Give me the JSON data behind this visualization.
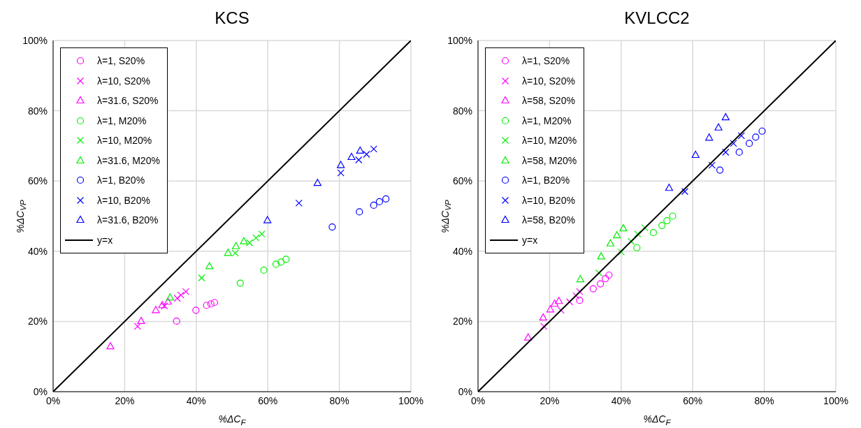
{
  "chart_data": [
    {
      "type": "scatter",
      "title": "KCS",
      "xlabel": "%ΔC$_{F}$",
      "ylabel": "%ΔC$_{VP}$",
      "xlim": [
        0,
        100
      ],
      "ylim": [
        0,
        100
      ],
      "xticks": [
        {
          "value": 0,
          "label": "0%"
        },
        {
          "value": 20,
          "label": "20%"
        },
        {
          "value": 40,
          "label": "40%"
        },
        {
          "value": 60,
          "label": "60%"
        },
        {
          "value": 80,
          "label": "80%"
        },
        {
          "value": 100,
          "label": "100%"
        }
      ],
      "yticks": [
        {
          "value": 0,
          "label": "0%"
        },
        {
          "value": 20,
          "label": "20%"
        },
        {
          "value": 40,
          "label": "40%"
        },
        {
          "value": 60,
          "label": "60%"
        },
        {
          "value": 80,
          "label": "80%"
        },
        {
          "value": 100,
          "label": "100%"
        }
      ],
      "grid": true,
      "legend": "top left",
      "series": [
        {
          "name": "λ=1, S20%",
          "color": "#ff00ff",
          "marker": "circle",
          "x": [
            34.5,
            39.9,
            42.9,
            44.1,
            45.1
          ],
          "values": [
            20.1,
            23.2,
            24.6,
            25.0,
            25.4
          ]
        },
        {
          "name": "λ=10, S20%",
          "color": "#ff00ff",
          "marker": "cross",
          "x": [
            23.6,
            31.1,
            34.7,
            35.7,
            37.1
          ],
          "values": [
            18.6,
            24.4,
            26.6,
            27.5,
            28.5
          ]
        },
        {
          "name": "λ=31.6, S20%",
          "color": "#ff00ff",
          "marker": "triangle",
          "x": [
            16.0,
            24.6,
            28.7,
            30.5,
            32.1
          ],
          "values": [
            12.9,
            20.1,
            23.2,
            24.6,
            25.6
          ]
        },
        {
          "name": "λ=1, M20%",
          "color": "#00ee00",
          "marker": "circle",
          "x": [
            52.3,
            58.9,
            62.3,
            63.7,
            65.1
          ],
          "values": [
            30.9,
            34.6,
            36.3,
            36.9,
            37.7
          ]
        },
        {
          "name": "λ=10, M20%",
          "color": "#00ee00",
          "marker": "cross",
          "x": [
            41.5,
            50.9,
            54.9,
            56.7,
            58.3
          ],
          "values": [
            32.4,
            39.5,
            42.4,
            43.8,
            44.9
          ]
        },
        {
          "name": "λ=31.6, M20%",
          "color": "#00ee00",
          "marker": "triangle",
          "x": [
            32.7,
            43.7,
            48.9,
            51.1,
            53.3
          ],
          "values": [
            26.8,
            35.7,
            39.5,
            41.4,
            42.8
          ]
        },
        {
          "name": "λ=1, B20%",
          "color": "#0000ff",
          "marker": "circle",
          "x": [
            78.0,
            85.6,
            89.6,
            91.2,
            93.0
          ],
          "values": [
            46.9,
            51.2,
            53.1,
            54.1,
            54.9
          ]
        },
        {
          "name": "λ=10, B20%",
          "color": "#0000ff",
          "marker": "cross",
          "x": [
            68.7,
            80.4,
            85.4,
            87.6,
            89.6
          ],
          "values": [
            53.7,
            62.3,
            66.0,
            67.6,
            69.1
          ]
        },
        {
          "name": "λ=31.6, B20%",
          "color": "#0000ff",
          "marker": "triangle",
          "x": [
            59.9,
            73.9,
            80.4,
            83.4,
            85.8
          ],
          "values": [
            48.8,
            59.4,
            64.5,
            66.8,
            68.6
          ]
        },
        {
          "name": "y=x",
          "type": "line",
          "color": "#000000",
          "marker": "none",
          "x": [
            0,
            100
          ],
          "values": [
            0,
            100
          ]
        }
      ]
    },
    {
      "type": "scatter",
      "title": "KVLCC2",
      "xlabel": "%ΔC$_{F}$",
      "ylabel": "%ΔC$_{VP}$",
      "xlim": [
        0,
        100
      ],
      "ylim": [
        0,
        100
      ],
      "xticks": [
        {
          "value": 0,
          "label": "0%"
        },
        {
          "value": 20,
          "label": "20%"
        },
        {
          "value": 40,
          "label": "40%"
        },
        {
          "value": 60,
          "label": "60%"
        },
        {
          "value": 80,
          "label": "80%"
        },
        {
          "value": 100,
          "label": "100%"
        }
      ],
      "yticks": [
        {
          "value": 0,
          "label": "0%"
        },
        {
          "value": 20,
          "label": "20%"
        },
        {
          "value": 40,
          "label": "40%"
        },
        {
          "value": 60,
          "label": "60%"
        },
        {
          "value": 80,
          "label": "80%"
        },
        {
          "value": 100,
          "label": "100%"
        }
      ],
      "grid": true,
      "legend": "top left",
      "series": [
        {
          "name": "λ=1, S20%",
          "color": "#ff00ff",
          "marker": "circle",
          "x": [
            28.4,
            32.2,
            34.2,
            35.6,
            36.6
          ],
          "values": [
            26.0,
            29.3,
            30.7,
            32.2,
            33.2
          ]
        },
        {
          "name": "λ=10, S20%",
          "color": "#ff00ff",
          "marker": "cross",
          "x": [
            18.4,
            23.2,
            25.6,
            27.4,
            28.4
          ],
          "values": [
            18.6,
            23.2,
            25.6,
            27.3,
            28.5
          ]
        },
        {
          "name": "λ=58, S20%",
          "color": "#ff00ff",
          "marker": "triangle",
          "x": [
            14.0,
            18.2,
            20.2,
            21.4,
            22.6
          ],
          "values": [
            15.4,
            21.1,
            23.4,
            25.0,
            25.8
          ]
        },
        {
          "name": "λ=1, M20%",
          "color": "#00ee00",
          "marker": "circle",
          "x": [
            44.4,
            49.0,
            51.4,
            52.8,
            54.4
          ],
          "values": [
            41.0,
            45.3,
            47.3,
            48.7,
            50.0
          ]
        },
        {
          "name": "λ=10, M20%",
          "color": "#00ee00",
          "marker": "cross",
          "x": [
            33.8,
            40.0,
            42.8,
            44.6,
            46.6
          ],
          "values": [
            33.8,
            39.8,
            42.8,
            44.9,
            46.7
          ]
        },
        {
          "name": "λ=58, M20%",
          "color": "#00ee00",
          "marker": "triangle",
          "x": [
            28.6,
            34.4,
            37.0,
            38.8,
            40.6
          ],
          "values": [
            32.0,
            38.5,
            42.2,
            44.5,
            46.5
          ]
        },
        {
          "name": "λ=1, B20%",
          "color": "#0000ff",
          "marker": "circle",
          "x": [
            67.6,
            73.0,
            75.8,
            77.6,
            79.4
          ],
          "values": [
            63.1,
            68.2,
            70.7,
            72.5,
            74.2
          ]
        },
        {
          "name": "λ=10, B20%",
          "color": "#0000ff",
          "marker": "cross",
          "x": [
            57.8,
            65.4,
            69.2,
            71.4,
            73.6
          ],
          "values": [
            57.0,
            64.5,
            68.2,
            70.7,
            72.9
          ]
        },
        {
          "name": "λ=58, B20%",
          "color": "#0000ff",
          "marker": "triangle",
          "x": [
            53.4,
            60.8,
            64.6,
            67.2,
            69.2
          ],
          "values": [
            58.0,
            67.4,
            72.3,
            75.2,
            78.1
          ]
        },
        {
          "name": "y=x",
          "type": "line",
          "color": "#000000",
          "marker": "none",
          "x": [
            0,
            100
          ],
          "values": [
            0,
            100
          ]
        }
      ]
    }
  ]
}
